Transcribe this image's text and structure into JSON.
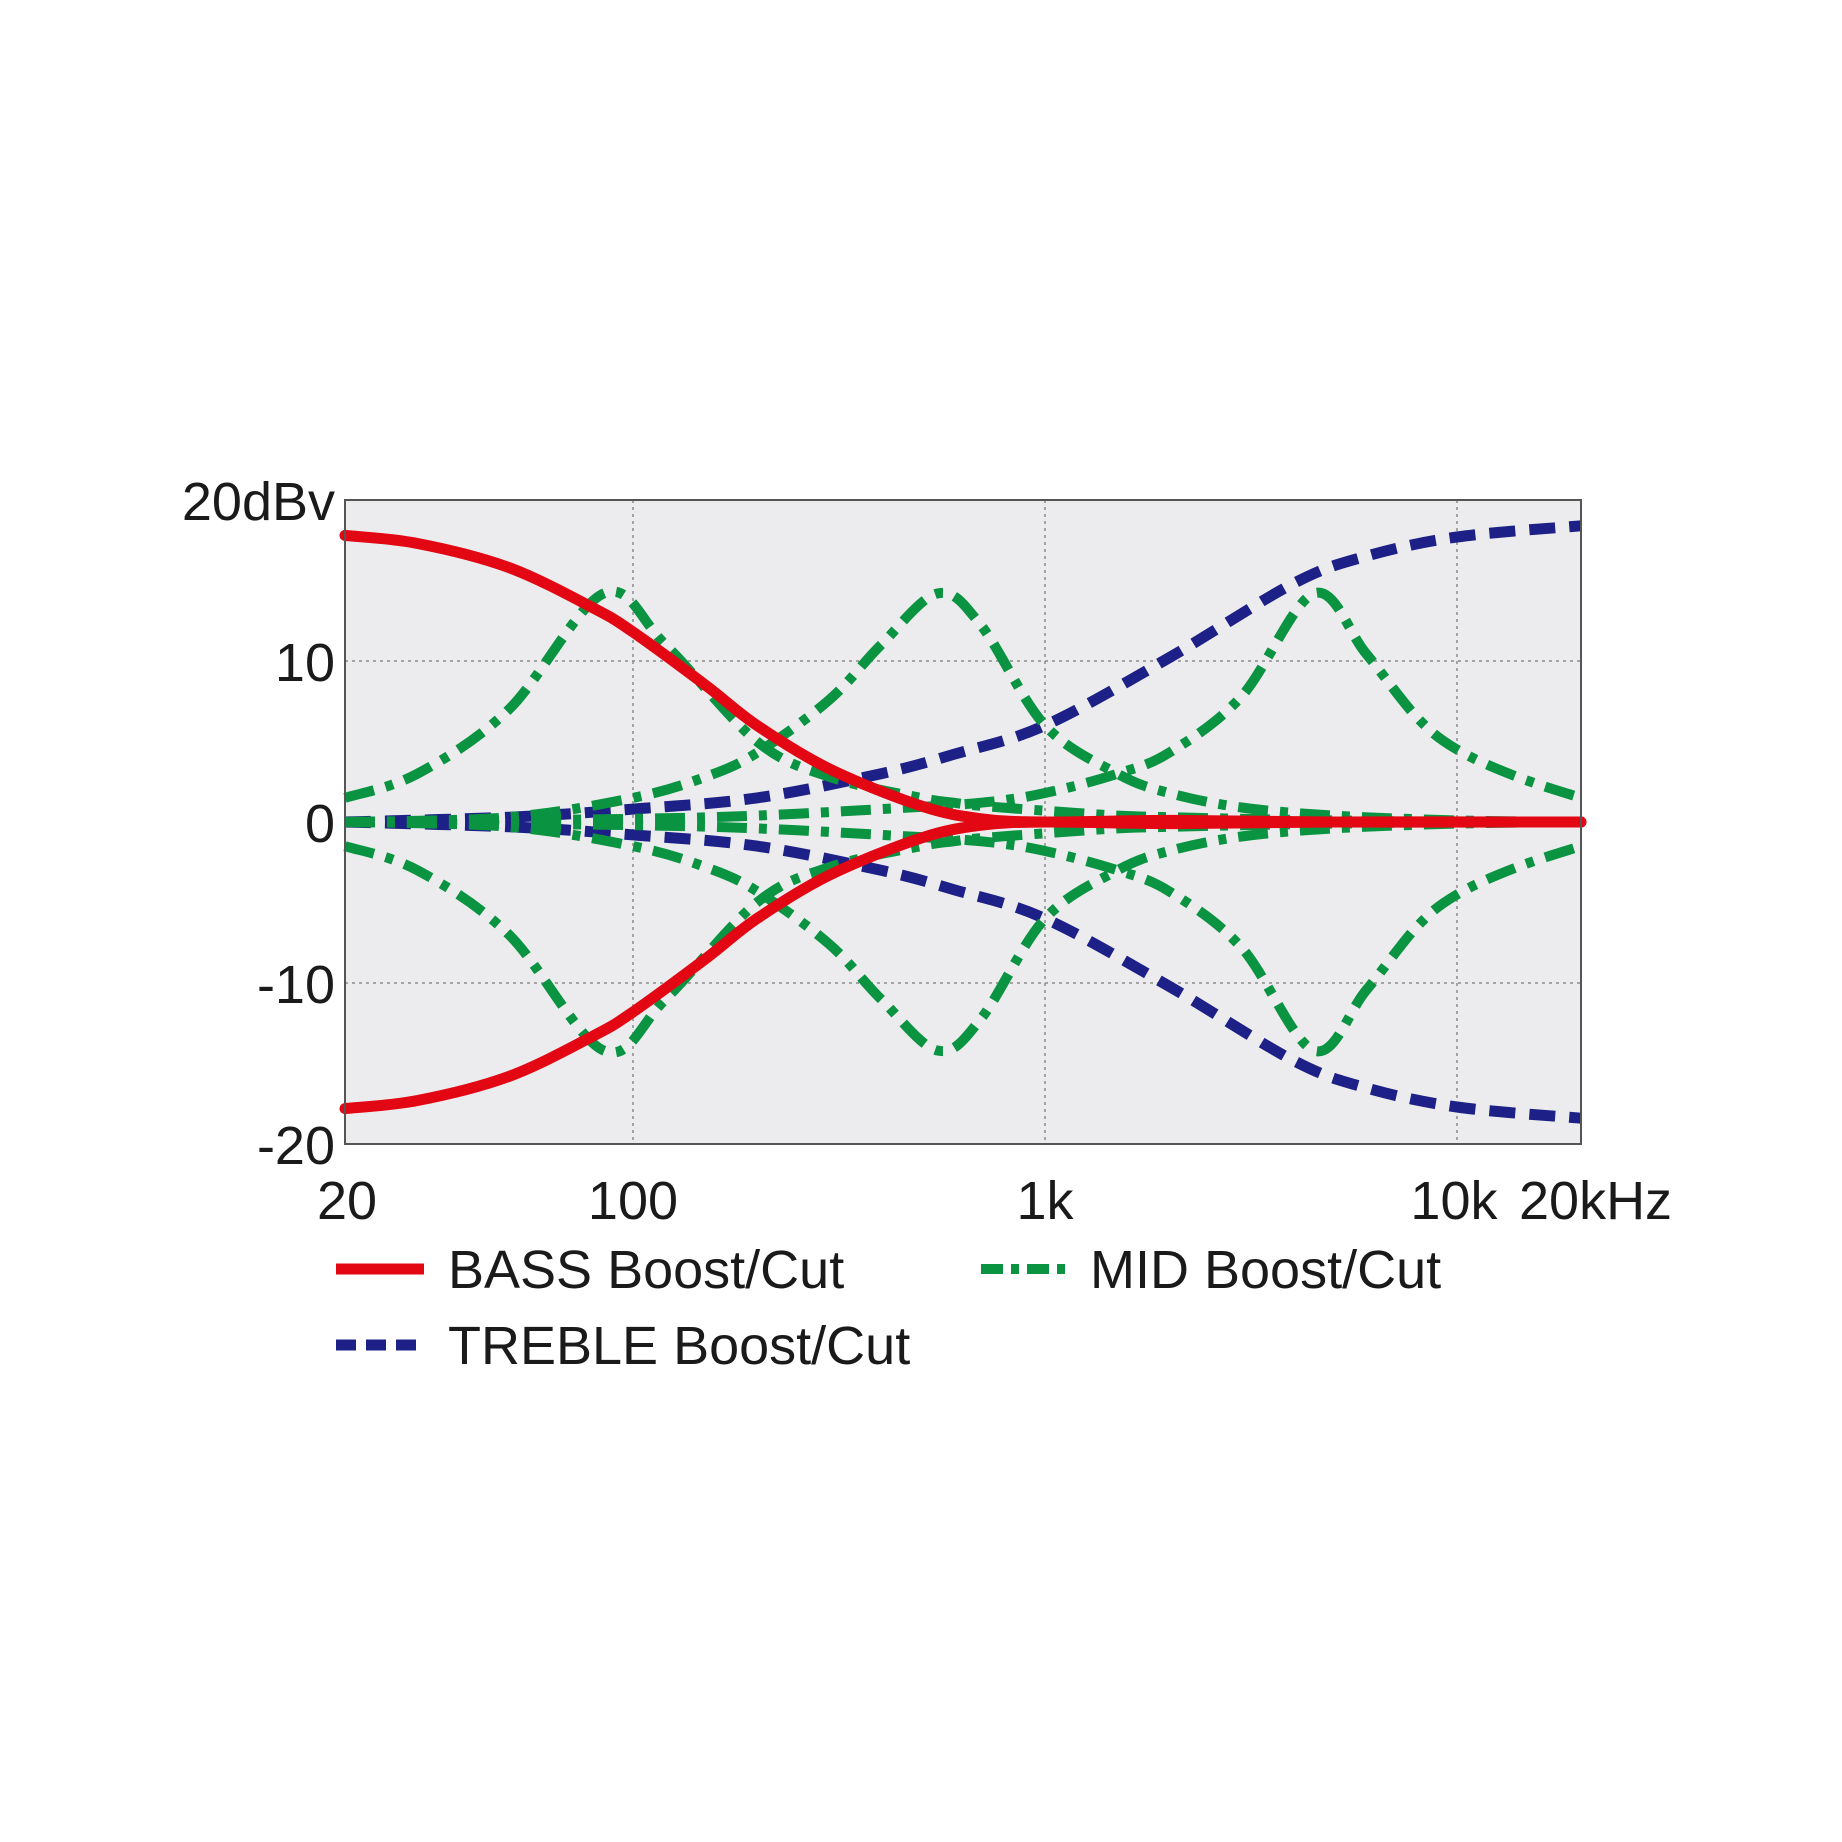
{
  "chart_data": {
    "type": "line",
    "title": "",
    "xlabel": "",
    "ylabel": "",
    "x_scale": "log",
    "xlim": [
      20,
      20000
    ],
    "ylim": [
      -20,
      20
    ],
    "grid": true,
    "x_ticks": [
      {
        "value": 20,
        "label": "20"
      },
      {
        "value": 100,
        "label": "100"
      },
      {
        "value": 1000,
        "label": "1k"
      },
      {
        "value": 10000,
        "label": "10k"
      },
      {
        "value": 20000,
        "label": "20kHz"
      }
    ],
    "y_ticks": [
      {
        "value": 20,
        "label": "20dBv"
      },
      {
        "value": 10,
        "label": "10"
      },
      {
        "value": 0,
        "label": "0"
      },
      {
        "value": -10,
        "label": "-10"
      },
      {
        "value": -20,
        "label": "-20"
      }
    ],
    "legend_position": "bottom",
    "colors": {
      "bass": "#e30613",
      "treble": "#1d2086",
      "mid": "#0a9341",
      "plot_background": "#ececee",
      "grid": "#8c8c8c",
      "frame": "#555555"
    },
    "series": [
      {
        "name": "BASS Boost/Cut",
        "group": "bass",
        "style": "solid",
        "x": [
          20,
          30,
          50,
          80,
          100,
          150,
          200,
          300,
          500,
          700,
          1000,
          2000,
          5000,
          20000
        ],
        "y": [
          17.8,
          17.3,
          15.8,
          13.3,
          11.8,
          8.5,
          6.0,
          3.3,
          1.0,
          0.2,
          0.0,
          0.1,
          0.0,
          0.0
        ]
      },
      {
        "name": "",
        "group": "bass",
        "style": "solid",
        "x": [
          20,
          30,
          50,
          80,
          100,
          150,
          200,
          300,
          500,
          700,
          1000,
          2000,
          5000,
          20000
        ],
        "y": [
          -17.8,
          -17.3,
          -15.8,
          -13.3,
          -11.8,
          -8.5,
          -6.0,
          -3.3,
          -1.0,
          -0.2,
          0.0,
          -0.1,
          0.0,
          0.0
        ]
      },
      {
        "name": "TREBLE Boost/Cut",
        "group": "treble",
        "style": "dashed",
        "x": [
          20,
          50,
          100,
          200,
          400,
          600,
          1000,
          2000,
          4000,
          6000,
          10000,
          20000
        ],
        "y": [
          0.0,
          0.3,
          0.8,
          1.5,
          3.0,
          4.2,
          6.0,
          10.2,
          14.8,
          16.5,
          17.7,
          18.4
        ]
      },
      {
        "name": "",
        "group": "treble",
        "style": "dashed",
        "x": [
          20,
          50,
          100,
          200,
          400,
          600,
          1000,
          2000,
          4000,
          6000,
          10000,
          20000
        ],
        "y": [
          0.0,
          -0.3,
          -0.8,
          -1.5,
          -3.0,
          -4.2,
          -6.0,
          -10.2,
          -14.8,
          -16.5,
          -17.7,
          -18.4
        ]
      },
      {
        "name": "MID Boost/Cut",
        "group": "mid",
        "style": "dashdot",
        "x": [
          20,
          30,
          50,
          85,
          120,
          200,
          300,
          500,
          600,
          700,
          1000,
          1500,
          2000,
          3000,
          5000,
          10000,
          20000
        ],
        "y": [
          1.5,
          3.0,
          7.0,
          14.2,
          11.0,
          5.0,
          2.8,
          1.5,
          1.2,
          1.0,
          0.7,
          0.4,
          0.3,
          0.2,
          0.1,
          0.0,
          0.0
        ]
      },
      {
        "name": "",
        "group": "mid",
        "style": "dashdot",
        "x": [
          20,
          30,
          50,
          85,
          120,
          200,
          300,
          500,
          600,
          700,
          1000,
          1500,
          2000,
          3000,
          5000,
          10000,
          20000
        ],
        "y": [
          -1.5,
          -3.0,
          -7.0,
          -14.2,
          -11.0,
          -5.0,
          -2.8,
          -1.5,
          -1.2,
          -1.0,
          -0.7,
          -0.4,
          -0.3,
          -0.2,
          -0.1,
          0.0,
          0.0
        ]
      },
      {
        "name": "",
        "group": "mid",
        "style": "dashdot",
        "x": [
          20,
          50,
          100,
          150,
          200,
          300,
          400,
          550,
          700,
          1000,
          1500,
          2000,
          3000,
          5000,
          10000,
          20000
        ],
        "y": [
          0.0,
          0.3,
          1.5,
          2.8,
          4.3,
          7.6,
          11.0,
          14.2,
          12.2,
          6.0,
          3.0,
          1.8,
          0.9,
          0.4,
          0.1,
          0.0
        ]
      },
      {
        "name": "",
        "group": "mid",
        "style": "dashdot",
        "x": [
          20,
          50,
          100,
          150,
          200,
          300,
          400,
          550,
          700,
          1000,
          1500,
          2000,
          3000,
          5000,
          10000,
          20000
        ],
        "y": [
          0.0,
          -0.3,
          -1.5,
          -2.8,
          -4.3,
          -7.6,
          -11.0,
          -14.2,
          -12.2,
          -6.0,
          -3.0,
          -1.8,
          -0.9,
          -0.4,
          -0.1,
          0.0
        ]
      },
      {
        "name": "",
        "group": "mid",
        "style": "dashdot",
        "x": [
          20,
          100,
          200,
          400,
          700,
          1000,
          1500,
          2000,
          3000,
          4500,
          6000,
          8000,
          10000,
          14000,
          20000
        ],
        "y": [
          0.0,
          0.2,
          0.4,
          0.8,
          1.2,
          1.8,
          3.0,
          4.3,
          7.8,
          14.2,
          10.5,
          6.5,
          4.5,
          2.8,
          1.5
        ]
      },
      {
        "name": "",
        "group": "mid",
        "style": "dashdot",
        "x": [
          20,
          100,
          200,
          400,
          700,
          1000,
          1500,
          2000,
          3000,
          4500,
          6000,
          8000,
          10000,
          14000,
          20000
        ],
        "y": [
          0.0,
          -0.2,
          -0.4,
          -0.8,
          -1.2,
          -1.8,
          -3.0,
          -4.3,
          -7.8,
          -14.2,
          -10.5,
          -6.5,
          -4.5,
          -2.8,
          -1.5
        ]
      }
    ],
    "legend": [
      {
        "label": "BASS Boost/Cut",
        "group": "bass",
        "style": "solid"
      },
      {
        "label": "MID Boost/Cut",
        "group": "mid",
        "style": "dashdot"
      },
      {
        "label": "TREBLE Boost/Cut",
        "group": "treble",
        "style": "dashed"
      }
    ]
  }
}
